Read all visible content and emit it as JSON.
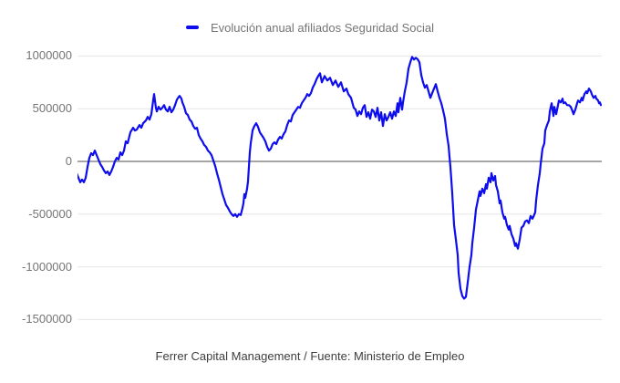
{
  "legend": {
    "label": "Evolución anual afiliados Seguridad Social"
  },
  "caption": "Ferrer Capital Management / Fuente: Ministerio de Empleo",
  "colors": {
    "series": "#0d0dee",
    "grid": "#e6e6e6",
    "zero_axis": "#4d4d4d",
    "axis_label": "#757575",
    "legend_text": "#757575",
    "caption_text": "#3d3d3d",
    "background": "#ffffff"
  },
  "chart_data": {
    "type": "line",
    "title": "",
    "series_name": "Evolución anual afiliados Seguridad Social",
    "xlabel": "",
    "ylabel": "",
    "x_axis_labels": "none (time axis unlabeled)",
    "ylim": [
      -1650000,
      1150000
    ],
    "yticks": [
      1000000,
      500000,
      0,
      -500000,
      -1000000,
      -1500000
    ],
    "grid": true,
    "legend_position": "top-center",
    "point_format": "[x_pixel_position, value_affiliates]",
    "points": [
      [
        84,
        -112000
      ],
      [
        86,
        -155000
      ],
      [
        88,
        -198000
      ],
      [
        90,
        -172000
      ],
      [
        92,
        -198000
      ],
      [
        94,
        -155000
      ],
      [
        96,
        -52000
      ],
      [
        98,
        34000
      ],
      [
        100,
        78000
      ],
      [
        102,
        60000
      ],
      [
        104,
        103000
      ],
      [
        106,
        60000
      ],
      [
        108,
        17000
      ],
      [
        110,
        -26000
      ],
      [
        112,
        -52000
      ],
      [
        114,
        -86000
      ],
      [
        116,
        -112000
      ],
      [
        118,
        -95000
      ],
      [
        120,
        -129000
      ],
      [
        122,
        -95000
      ],
      [
        124,
        -52000
      ],
      [
        126,
        0
      ],
      [
        128,
        34000
      ],
      [
        130,
        17000
      ],
      [
        132,
        86000
      ],
      [
        134,
        60000
      ],
      [
        136,
        103000
      ],
      [
        138,
        190000
      ],
      [
        140,
        172000
      ],
      [
        143,
        276000
      ],
      [
        146,
        319000
      ],
      [
        148,
        293000
      ],
      [
        150,
        302000
      ],
      [
        153,
        345000
      ],
      [
        155,
        319000
      ],
      [
        157,
        362000
      ],
      [
        160,
        388000
      ],
      [
        162,
        422000
      ],
      [
        164,
        396000
      ],
      [
        166,
        448000
      ],
      [
        168,
        578000
      ],
      [
        169,
        638000
      ],
      [
        171,
        509000
      ],
      [
        172,
        474000
      ],
      [
        174,
        517000
      ],
      [
        176,
        491000
      ],
      [
        178,
        509000
      ],
      [
        180,
        534000
      ],
      [
        182,
        491000
      ],
      [
        184,
        474000
      ],
      [
        186,
        517000
      ],
      [
        188,
        466000
      ],
      [
        190,
        491000
      ],
      [
        192,
        534000
      ],
      [
        194,
        586000
      ],
      [
        196,
        612000
      ],
      [
        197,
        621000
      ],
      [
        199,
        595000
      ],
      [
        200,
        560000
      ],
      [
        202,
        517000
      ],
      [
        204,
        457000
      ],
      [
        206,
        440000
      ],
      [
        208,
        397000
      ],
      [
        210,
        379000
      ],
      [
        212,
        336000
      ],
      [
        214,
        310000
      ],
      [
        216,
        319000
      ],
      [
        218,
        250000
      ],
      [
        220,
        216000
      ],
      [
        222,
        190000
      ],
      [
        224,
        155000
      ],
      [
        226,
        138000
      ],
      [
        228,
        103000
      ],
      [
        230,
        86000
      ],
      [
        232,
        60000
      ],
      [
        234,
        9000
      ],
      [
        236,
        -43000
      ],
      [
        238,
        -112000
      ],
      [
        240,
        -172000
      ],
      [
        242,
        -241000
      ],
      [
        244,
        -310000
      ],
      [
        246,
        -362000
      ],
      [
        248,
        -414000
      ],
      [
        250,
        -440000
      ],
      [
        252,
        -474000
      ],
      [
        254,
        -500000
      ],
      [
        256,
        -517000
      ],
      [
        258,
        -500000
      ],
      [
        260,
        -526000
      ],
      [
        262,
        -500000
      ],
      [
        264,
        -509000
      ],
      [
        266,
        -440000
      ],
      [
        267,
        -397000
      ],
      [
        268,
        -310000
      ],
      [
        269,
        -345000
      ],
      [
        271,
        -259000
      ],
      [
        272,
        -190000
      ],
      [
        273,
        -52000
      ],
      [
        274,
        86000
      ],
      [
        275,
        172000
      ],
      [
        277,
        293000
      ],
      [
        279,
        336000
      ],
      [
        281,
        362000
      ],
      [
        283,
        328000
      ],
      [
        285,
        276000
      ],
      [
        287,
        250000
      ],
      [
        289,
        224000
      ],
      [
        291,
        190000
      ],
      [
        293,
        138000
      ],
      [
        295,
        103000
      ],
      [
        297,
        121000
      ],
      [
        299,
        164000
      ],
      [
        301,
        181000
      ],
      [
        303,
        164000
      ],
      [
        305,
        207000
      ],
      [
        307,
        233000
      ],
      [
        309,
        216000
      ],
      [
        311,
        259000
      ],
      [
        313,
        285000
      ],
      [
        315,
        345000
      ],
      [
        317,
        388000
      ],
      [
        319,
        379000
      ],
      [
        321,
        440000
      ],
      [
        323,
        466000
      ],
      [
        325,
        491000
      ],
      [
        327,
        517000
      ],
      [
        329,
        509000
      ],
      [
        331,
        552000
      ],
      [
        333,
        578000
      ],
      [
        335,
        603000
      ],
      [
        337,
        638000
      ],
      [
        339,
        621000
      ],
      [
        341,
        647000
      ],
      [
        343,
        700000
      ],
      [
        345,
        733000
      ],
      [
        347,
        776000
      ],
      [
        349,
        810000
      ],
      [
        351,
        836000
      ],
      [
        353,
        750000
      ],
      [
        356,
        810000
      ],
      [
        359,
        767000
      ],
      [
        362,
        793000
      ],
      [
        365,
        724000
      ],
      [
        368,
        767000
      ],
      [
        371,
        707000
      ],
      [
        374,
        750000
      ],
      [
        377,
        664000
      ],
      [
        380,
        690000
      ],
      [
        382,
        638000
      ],
      [
        385,
        603000
      ],
      [
        388,
        509000
      ],
      [
        390,
        491000
      ],
      [
        392,
        431000
      ],
      [
        394,
        474000
      ],
      [
        396,
        448000
      ],
      [
        398,
        509000
      ],
      [
        400,
        534000
      ],
      [
        402,
        422000
      ],
      [
        404,
        466000
      ],
      [
        406,
        405000
      ],
      [
        408,
        491000
      ],
      [
        410,
        474000
      ],
      [
        412,
        422000
      ],
      [
        414,
        509000
      ],
      [
        416,
        388000
      ],
      [
        418,
        466000
      ],
      [
        420,
        336000
      ],
      [
        422,
        448000
      ],
      [
        424,
        388000
      ],
      [
        426,
        422000
      ],
      [
        428,
        466000
      ],
      [
        430,
        405000
      ],
      [
        432,
        474000
      ],
      [
        434,
        431000
      ],
      [
        436,
        552000
      ],
      [
        437,
        466000
      ],
      [
        439,
        603000
      ],
      [
        441,
        491000
      ],
      [
        442,
        560000
      ],
      [
        444,
        664000
      ],
      [
        446,
        750000
      ],
      [
        448,
        880000
      ],
      [
        450,
        940000
      ],
      [
        452,
        991000
      ],
      [
        454,
        966000
      ],
      [
        456,
        983000
      ],
      [
        458,
        970000
      ],
      [
        460,
        940000
      ],
      [
        462,
        820000
      ],
      [
        464,
        750000
      ],
      [
        466,
        700000
      ],
      [
        468,
        724000
      ],
      [
        470,
        664000
      ],
      [
        472,
        603000
      ],
      [
        474,
        647000
      ],
      [
        476,
        690000
      ],
      [
        478,
        733000
      ],
      [
        480,
        664000
      ],
      [
        482,
        603000
      ],
      [
        484,
        552000
      ],
      [
        486,
        483000
      ],
      [
        488,
        405000
      ],
      [
        490,
        259000
      ],
      [
        492,
        147000
      ],
      [
        493,
        43000
      ],
      [
        494,
        -52000
      ],
      [
        496,
        -300000
      ],
      [
        498,
        -603000
      ],
      [
        500,
        -741000
      ],
      [
        502,
        -888000
      ],
      [
        503,
        -1060000
      ],
      [
        505,
        -1207000
      ],
      [
        507,
        -1276000
      ],
      [
        509,
        -1302000
      ],
      [
        511,
        -1285000
      ],
      [
        513,
        -1147000
      ],
      [
        515,
        -1000000
      ],
      [
        517,
        -888000
      ],
      [
        518,
        -776000
      ],
      [
        520,
        -629000
      ],
      [
        522,
        -457000
      ],
      [
        524,
        -371000
      ],
      [
        526,
        -284000
      ],
      [
        527,
        -328000
      ],
      [
        529,
        -259000
      ],
      [
        531,
        -302000
      ],
      [
        533,
        -216000
      ],
      [
        534,
        -259000
      ],
      [
        536,
        -155000
      ],
      [
        538,
        -198000
      ],
      [
        539,
        -112000
      ],
      [
        541,
        -181000
      ],
      [
        543,
        -138000
      ],
      [
        544,
        -224000
      ],
      [
        546,
        -284000
      ],
      [
        548,
        -397000
      ],
      [
        549,
        -371000
      ],
      [
        551,
        -483000
      ],
      [
        553,
        -543000
      ],
      [
        554,
        -526000
      ],
      [
        556,
        -603000
      ],
      [
        558,
        -647000
      ],
      [
        559,
        -612000
      ],
      [
        561,
        -690000
      ],
      [
        563,
        -733000
      ],
      [
        565,
        -802000
      ],
      [
        566,
        -776000
      ],
      [
        568,
        -828000
      ],
      [
        570,
        -741000
      ],
      [
        572,
        -629000
      ],
      [
        574,
        -612000
      ],
      [
        576,
        -569000
      ],
      [
        578,
        -560000
      ],
      [
        580,
        -586000
      ],
      [
        582,
        -517000
      ],
      [
        584,
        -543000
      ],
      [
        585,
        -526000
      ],
      [
        587,
        -483000
      ],
      [
        588,
        -371000
      ],
      [
        590,
        -224000
      ],
      [
        592,
        -112000
      ],
      [
        593,
        -26000
      ],
      [
        595,
        121000
      ],
      [
        597,
        172000
      ],
      [
        598,
        293000
      ],
      [
        600,
        345000
      ],
      [
        602,
        388000
      ],
      [
        603,
        474000
      ],
      [
        605,
        552000
      ],
      [
        607,
        431000
      ],
      [
        608,
        517000
      ],
      [
        610,
        448000
      ],
      [
        612,
        534000
      ],
      [
        613,
        578000
      ],
      [
        615,
        560000
      ],
      [
        617,
        595000
      ],
      [
        618,
        552000
      ],
      [
        620,
        560000
      ],
      [
        622,
        534000
      ],
      [
        624,
        534000
      ],
      [
        626,
        517000
      ],
      [
        628,
        474000
      ],
      [
        629,
        448000
      ],
      [
        631,
        491000
      ],
      [
        633,
        552000
      ],
      [
        634,
        578000
      ],
      [
        636,
        560000
      ],
      [
        638,
        603000
      ],
      [
        639,
        578000
      ],
      [
        641,
        638000
      ],
      [
        643,
        664000
      ],
      [
        644,
        647000
      ],
      [
        646,
        690000
      ],
      [
        648,
        664000
      ],
      [
        649,
        638000
      ],
      [
        651,
        603000
      ],
      [
        653,
        621000
      ],
      [
        654,
        595000
      ],
      [
        656,
        578000
      ],
      [
        657,
        552000
      ],
      [
        658,
        560000
      ],
      [
        659,
        534000
      ]
    ]
  }
}
